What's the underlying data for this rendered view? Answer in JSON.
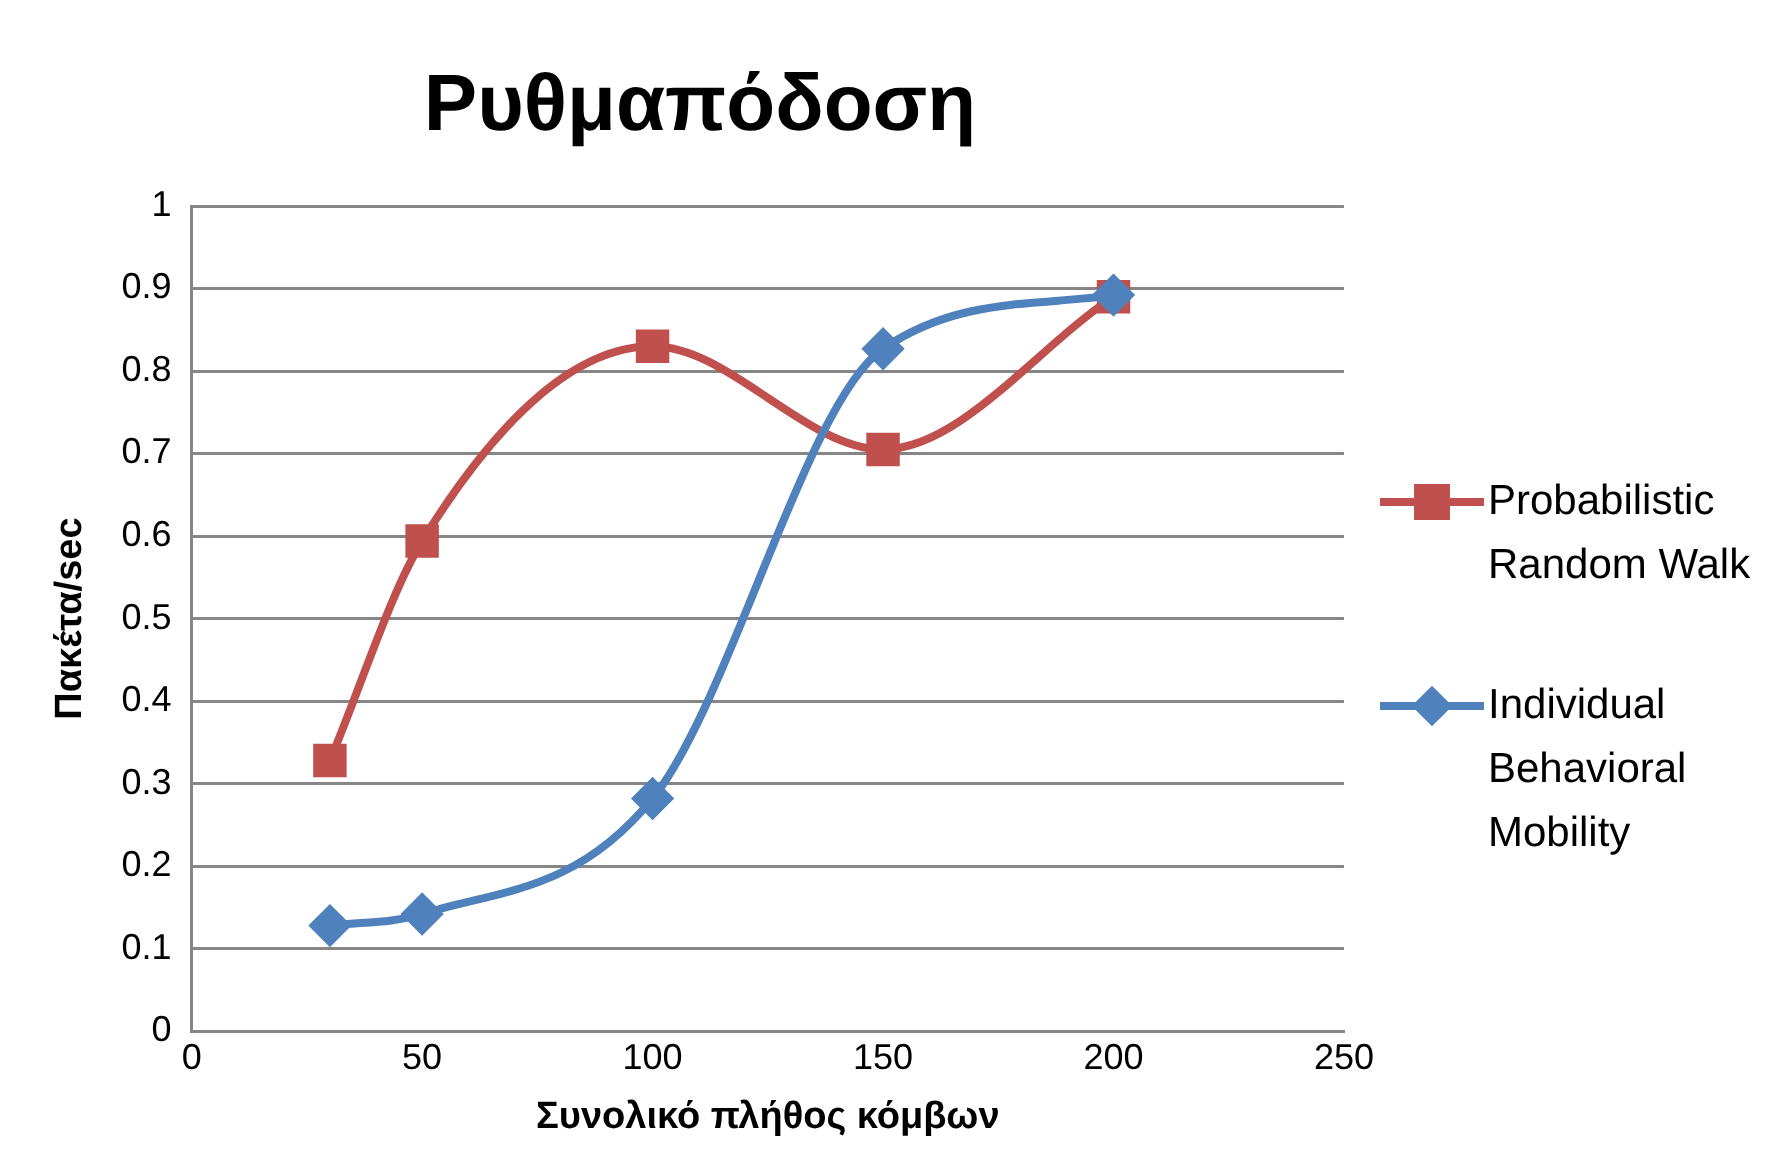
{
  "chart_data": {
    "type": "line",
    "title": "Ρυθμαπόδοση",
    "xlabel": "Συνολικό πλήθος κόμβων",
    "ylabel": "Πακέτα/sec",
    "x": [
      30,
      50,
      100,
      150,
      200
    ],
    "series": [
      {
        "name": "Probabilistic Random Walk",
        "color": "#c0504d",
        "marker": "square",
        "values": [
          0.328,
          0.594,
          0.83,
          0.705,
          0.89
        ]
      },
      {
        "name": "Individual Behavioral Mobility",
        "color": "#4f81bd",
        "marker": "diamond",
        "values": [
          0.128,
          0.142,
          0.282,
          0.827,
          0.892
        ]
      }
    ],
    "xlim": [
      0,
      250
    ],
    "xticks": [
      0,
      50,
      100,
      150,
      200,
      250
    ],
    "ylim": [
      0,
      1
    ],
    "yticks": [
      0,
      0.1,
      0.2,
      0.3,
      0.4,
      0.5,
      0.6,
      0.7,
      0.8,
      0.9,
      1
    ],
    "grid": "y",
    "legend": "right"
  }
}
